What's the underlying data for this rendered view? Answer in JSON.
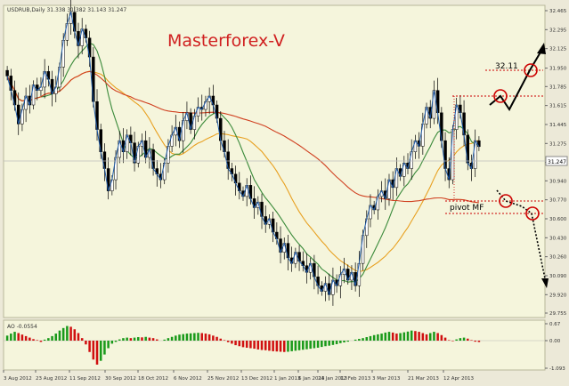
{
  "chart_data": [
    {
      "type": "candlestick",
      "header": "USDRUB,Daily  31.338 31.382 31.143 31.247",
      "watermark": "Masterforex-V",
      "current_price": "31.247",
      "y_ticks": [
        "32.465",
        "32.295",
        "32.125",
        "31.950",
        "31.785",
        "31.615",
        "31.445",
        "31.275",
        "31.105",
        "30.940",
        "30.770",
        "30.600",
        "30.430",
        "30.260",
        "30.090",
        "29.920",
        "29.755"
      ],
      "ylim": [
        29.755,
        32.465
      ],
      "x_ticks": [
        "3 Aug 2012",
        "23 Aug 2012",
        "11 Sep 2012",
        "30 Sep 2012",
        "18 Oct 2012",
        "6 Nov 2012",
        "25 Nov 2012",
        "13 Dec 2012",
        "1 Jan 2013",
        "6 Jan 2013",
        "24 Jan 2013",
        "12 Feb 2013",
        "3 Mar 2013",
        "21 Mar 2013",
        "12 Apr 2013"
      ],
      "close": [
        31.88,
        31.75,
        31.62,
        31.45,
        31.58,
        31.7,
        31.62,
        31.8,
        31.75,
        31.78,
        31.92,
        31.85,
        31.72,
        31.78,
        31.96,
        32.2,
        32.35,
        32.45,
        32.28,
        32.15,
        32.3,
        32.22,
        32.05,
        31.65,
        31.4,
        31.2,
        31.05,
        30.85,
        30.95,
        31.15,
        31.3,
        31.2,
        31.35,
        31.28,
        31.1,
        31.25,
        31.3,
        31.15,
        31.22,
        31.05,
        31.0,
        30.95,
        31.1,
        31.25,
        31.35,
        31.42,
        31.3,
        31.48,
        31.55,
        31.4,
        31.52,
        31.6,
        31.58,
        31.65,
        31.7,
        31.62,
        31.5,
        31.3,
        31.2,
        31.05,
        31.0,
        30.92,
        30.85,
        30.8,
        30.9,
        30.78,
        30.7,
        30.75,
        30.62,
        30.55,
        30.6,
        30.48,
        30.42,
        30.3,
        30.38,
        30.25,
        30.2,
        30.3,
        30.22,
        30.18,
        30.12,
        30.2,
        30.08,
        30.0,
        29.95,
        30.02,
        29.92,
        30.05,
        30.0,
        30.1,
        30.15,
        30.05,
        30.12,
        30.0,
        30.2,
        30.45,
        30.6,
        30.72,
        30.68,
        30.8,
        30.85,
        30.78,
        30.95,
        30.88,
        31.05,
        30.98,
        31.1,
        31.05,
        31.2,
        31.3,
        31.25,
        31.45,
        31.6,
        31.5,
        31.75,
        31.55,
        31.3,
        31.05,
        30.95,
        31.4,
        31.62,
        31.55,
        31.35,
        31.1,
        31.05,
        31.3,
        31.247
      ],
      "annotations": {
        "level_label": "32.11",
        "pivot_label": "pivot MF"
      },
      "series": [
        {
          "name": "",
          "color": "#e8a020"
        },
        {
          "name": "",
          "color": "#3a8a3a"
        },
        {
          "name": "",
          "color": "#d04020"
        }
      ]
    },
    {
      "type": "bar",
      "label": "AO -0.0554",
      "y_ticks": [
        "0.67",
        "0.00",
        "-1.093"
      ],
      "ylim": [
        -1.093,
        0.67
      ],
      "values": [
        0.2,
        0.28,
        0.35,
        0.3,
        0.24,
        0.18,
        0.12,
        0.06,
        0.02,
        -0.05,
        0.04,
        0.1,
        0.18,
        0.28,
        0.4,
        0.5,
        0.58,
        0.55,
        0.45,
        0.3,
        0.1,
        -0.15,
        -0.45,
        -0.75,
        -0.95,
        -0.8,
        -0.55,
        -0.3,
        -0.12,
        -0.05,
        0.05,
        0.1,
        0.12,
        0.1,
        0.12,
        0.14,
        0.13,
        0.15,
        0.12,
        0.1,
        0.05,
        0.0,
        0.04,
        0.1,
        0.15,
        0.2,
        0.24,
        0.26,
        0.28,
        0.29,
        0.3,
        0.31,
        0.3,
        0.28,
        0.25,
        0.2,
        0.15,
        0.08,
        0.02,
        -0.06,
        -0.12,
        -0.18,
        -0.22,
        -0.26,
        -0.28,
        -0.3,
        -0.32,
        -0.35,
        -0.37,
        -0.38,
        -0.4,
        -0.42,
        -0.43,
        -0.44,
        -0.45,
        -0.44,
        -0.42,
        -0.4,
        -0.38,
        -0.36,
        -0.34,
        -0.32,
        -0.3,
        -0.28,
        -0.25,
        -0.22,
        -0.2,
        -0.17,
        -0.14,
        -0.1,
        -0.07,
        -0.04,
        0.0,
        0.04,
        0.07,
        0.1,
        0.14,
        0.18,
        0.22,
        0.25,
        0.28,
        0.32,
        0.35,
        0.32,
        0.28,
        0.3,
        0.33,
        0.36,
        0.4,
        0.38,
        0.35,
        0.3,
        0.25,
        0.3,
        0.35,
        0.3,
        0.22,
        0.12,
        0.02,
        -0.02,
        0.05,
        0.1,
        0.12,
        0.08,
        0.02,
        -0.04,
        -0.055
      ]
    }
  ]
}
